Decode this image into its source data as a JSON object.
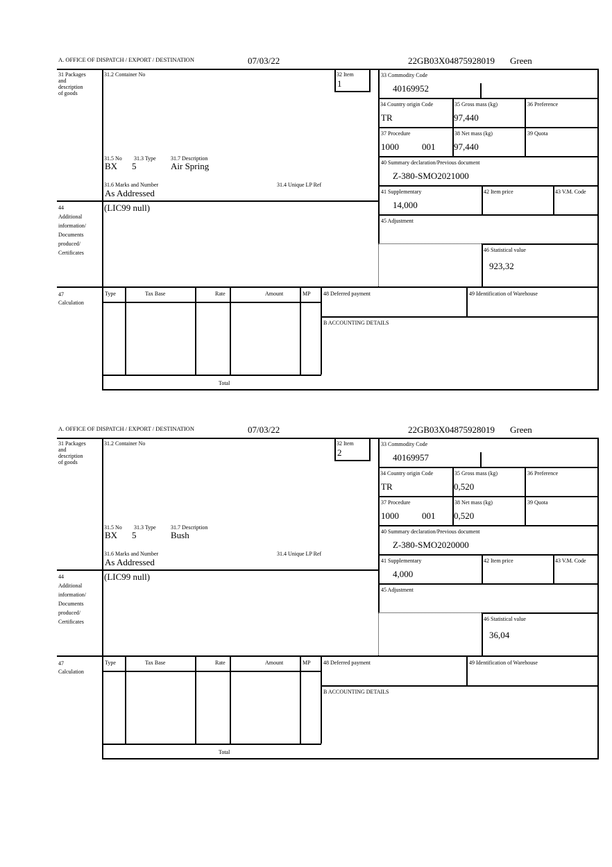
{
  "header": {
    "office_label": "A. OFFICE OF DISPATCH / EXPORT / DESTINATION",
    "date": "07/03/22",
    "reference": "22GB03X04875928019",
    "route": "Green"
  },
  "labels": {
    "packages": [
      "31 Packages",
      "and",
      "description",
      "of goods"
    ],
    "container_no": "31.2 Container No",
    "item": "32 Item",
    "commodity_code": "33 Commodity Code",
    "country_origin": "34 Country origin Code",
    "gross_mass": "35 Gross mass (kg)",
    "preference": "36 Preference",
    "procedure": "37 Procedure",
    "net_mass": "38 Net mass (kg)",
    "quota": "39 Quota",
    "summary_decl": "40 Summary declaration/Previous document",
    "supplementary": "41 Supplementary",
    "item_price": "42 Item price",
    "vm_code": "43 V.M. Code",
    "adjustment": "45 Adjustment",
    "statistical_value": "46 Statistical value",
    "no": "31.5 No",
    "type": "31.3 Type",
    "description": "31.7 Description",
    "marks": "31.6 Marks and Number",
    "unique_lp": "31.4 Unique LP Ref",
    "additional": [
      "44",
      "Additional",
      "information/",
      "Documents",
      "produced/",
      "Certificates"
    ],
    "calculation": [
      "47",
      "Calculation"
    ],
    "calc_cols": [
      "Type",
      "Tax Base",
      "Rate",
      "Amount",
      "MP"
    ],
    "total": "Total",
    "deferred_payment": "48 Deferred payment",
    "warehouse": "49 Identification of Warehouse",
    "accounting": "B ACCOUNTING DETAILS"
  },
  "items": [
    {
      "item_no": "1",
      "commodity_code": "40169952",
      "country_origin": "TR",
      "gross_mass": "97,440",
      "procedure": "1000",
      "procedure_add": "001",
      "net_mass": "97,440",
      "summary_decl": "Z-380-SMO2021000",
      "supplementary": "14,000",
      "statistical_value": "923,32",
      "pkg_no": "BX",
      "pkg_type": "5",
      "description": "Air Spring",
      "marks": "As Addressed",
      "additional_info": "(LIC99 null)"
    },
    {
      "item_no": "2",
      "commodity_code": "40169957",
      "country_origin": "TR",
      "gross_mass": "0,520",
      "procedure": "1000",
      "procedure_add": "001",
      "net_mass": "0,520",
      "summary_decl": "Z-380-SMO2020000",
      "supplementary": "4,000",
      "statistical_value": "36,04",
      "pkg_no": "BX",
      "pkg_type": "5",
      "description": "Bush",
      "marks": "As Addressed",
      "additional_info": "(LIC99 null)"
    }
  ]
}
